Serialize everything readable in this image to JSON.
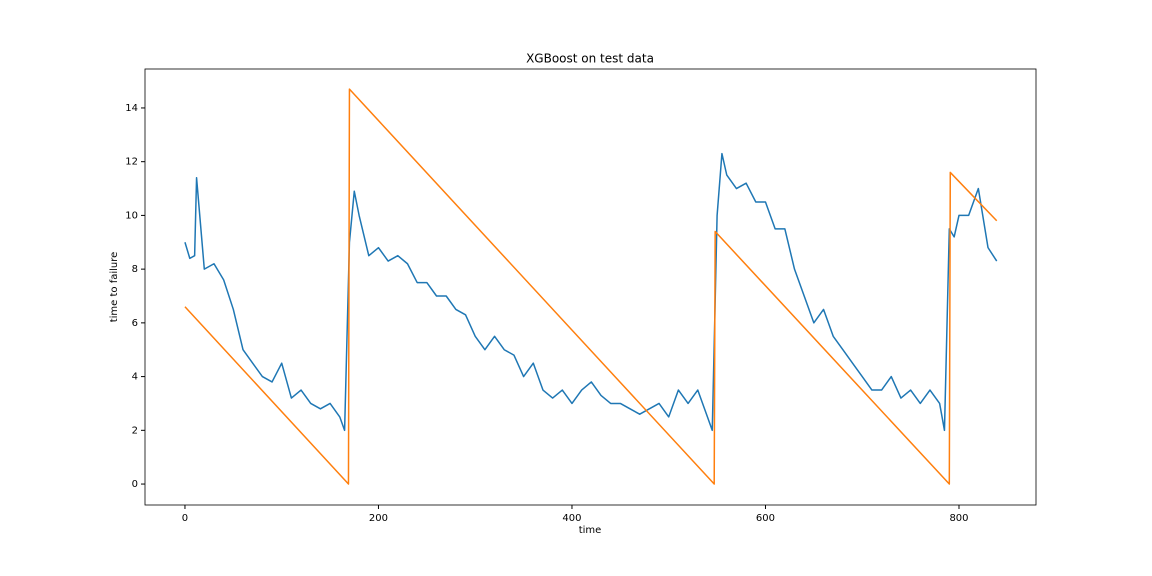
{
  "chart_data": {
    "type": "line",
    "title": "XGBoost on test data",
    "x_label": "time",
    "y_label": "time to failure",
    "xlim": [
      -41.3,
      879.6
    ],
    "ylim": [
      -0.78,
      15.45
    ],
    "xticks": [
      0,
      200,
      400,
      600,
      800
    ],
    "yticks": [
      0,
      2,
      4,
      6,
      8,
      10,
      12,
      14
    ],
    "grid": false,
    "series": [
      {
        "color": "#1f77b4",
        "x": [
          0,
          5,
          10,
          12,
          20,
          30,
          40,
          50,
          60,
          70,
          80,
          90,
          100,
          110,
          120,
          130,
          140,
          150,
          160,
          165,
          170,
          175,
          180,
          190,
          200,
          210,
          220,
          230,
          240,
          250,
          260,
          270,
          280,
          290,
          300,
          310,
          320,
          330,
          340,
          350,
          360,
          370,
          380,
          390,
          400,
          410,
          420,
          430,
          440,
          450,
          460,
          470,
          480,
          490,
          500,
          510,
          520,
          530,
          540,
          545,
          550,
          555,
          560,
          570,
          580,
          590,
          600,
          610,
          620,
          630,
          640,
          650,
          660,
          670,
          680,
          690,
          700,
          710,
          720,
          730,
          740,
          750,
          760,
          770,
          780,
          785,
          790,
          795,
          800,
          810,
          820,
          830,
          839
        ],
        "values": [
          9.0,
          8.4,
          8.5,
          11.4,
          8.0,
          8.2,
          7.6,
          6.5,
          5.0,
          4.5,
          4.0,
          3.8,
          4.5,
          3.2,
          3.5,
          3.0,
          2.8,
          3.0,
          2.5,
          2.0,
          9.0,
          10.9,
          10.0,
          8.5,
          8.8,
          8.3,
          8.5,
          8.2,
          7.5,
          7.5,
          7.0,
          7.0,
          6.5,
          6.3,
          5.5,
          5.0,
          5.5,
          5.0,
          4.8,
          4.0,
          4.5,
          3.5,
          3.2,
          3.5,
          3.0,
          3.5,
          3.8,
          3.3,
          3.0,
          3.0,
          2.8,
          2.6,
          2.8,
          3.0,
          2.5,
          3.5,
          3.0,
          3.5,
          2.5,
          2.0,
          10.0,
          12.3,
          11.5,
          11.0,
          11.2,
          10.5,
          10.5,
          9.5,
          9.5,
          8.0,
          7.0,
          6.0,
          6.5,
          5.5,
          5.0,
          4.5,
          4.0,
          3.5,
          3.5,
          4.0,
          3.2,
          3.5,
          3.0,
          3.5,
          3.0,
          2.0,
          9.5,
          9.2,
          10.0,
          10.0,
          11.0,
          8.8,
          8.3
        ]
      },
      {
        "color": "#ff7f0e",
        "x": [
          0,
          169,
          170,
          547,
          548,
          790,
          791,
          839
        ],
        "values": [
          6.6,
          0,
          14.7,
          0,
          9.4,
          0,
          11.6,
          9.8
        ]
      }
    ]
  }
}
